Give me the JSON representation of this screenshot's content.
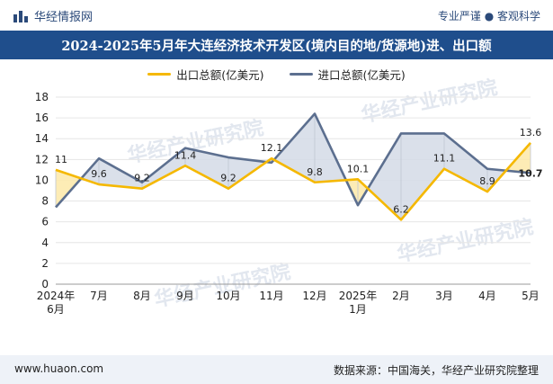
{
  "header": {
    "brand": "华经情报网",
    "slogan": "专业严谨 ● 客观科学"
  },
  "title": "2024-2025年5月年大连经济技术开发区(境内目的地/货源地)进、出口额",
  "watermark": "华经产业研究院",
  "footer": {
    "left": "www.huaon.com",
    "right": "数据来源：中国海关，华经产业研究院整理"
  },
  "colors": {
    "export": "#f5b800",
    "import": "#5c6f8f",
    "export_fill": "#fde9a8",
    "import_fill": "#d4dae6",
    "title_bg": "#1f4e8c"
  },
  "chart_data": {
    "type": "line",
    "categories": [
      "2024年\n6月",
      "7月",
      "8月",
      "9月",
      "10月",
      "11月",
      "12月",
      "2025年\n1月",
      "2月",
      "3月",
      "4月",
      "5月"
    ],
    "series": [
      {
        "name": "出口总额(亿美元)",
        "values": [
          11,
          9.6,
          9.2,
          11.4,
          9.2,
          12.1,
          9.8,
          10.1,
          6.2,
          11.1,
          8.9,
          13.6
        ]
      },
      {
        "name": "进口总额(亿美元)",
        "values": [
          7.4,
          12.1,
          9.8,
          13.1,
          12.2,
          11.7,
          16.4,
          7.6,
          14.5,
          14.5,
          11.1,
          10.7
        ]
      }
    ],
    "data_labels": [
      "11",
      "9.6",
      "9.2",
      "11.4",
      "9.2",
      "12.1",
      "9.8",
      "10.1",
      "6.2",
      "11.1",
      "8.9",
      "13.6"
    ],
    "extra_label": "10.7",
    "ylim": [
      0,
      18
    ],
    "yticks": [
      0,
      2,
      4,
      6,
      8,
      10,
      12,
      14,
      16,
      18
    ],
    "legend_position": "top-center"
  }
}
